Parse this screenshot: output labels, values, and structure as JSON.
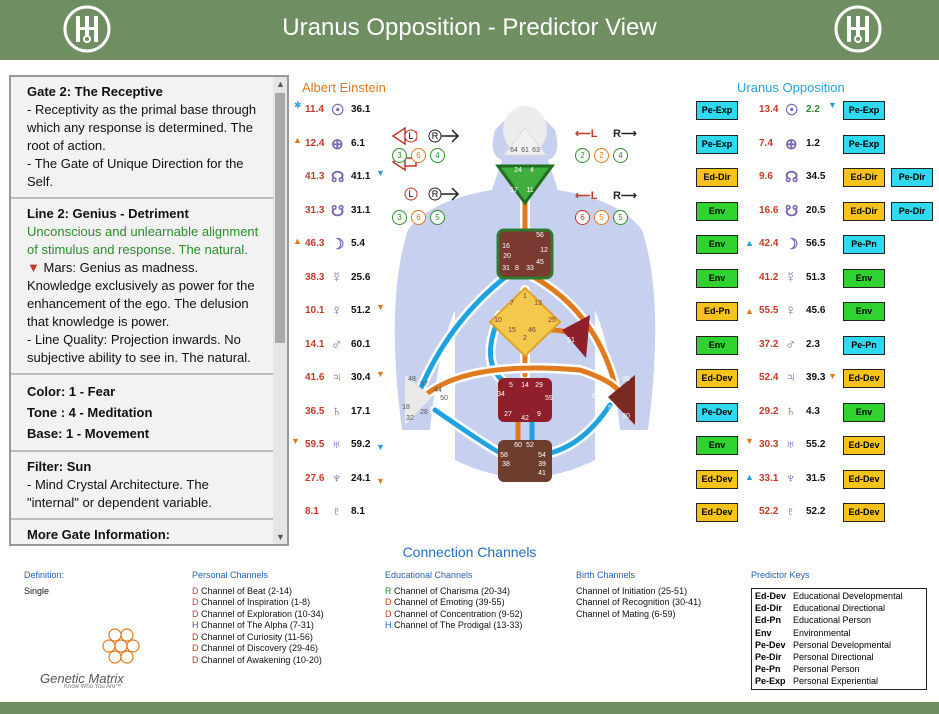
{
  "header": {
    "title": "Uranus Opposition - Predictor View"
  },
  "left_name": "Albert Einstein",
  "right_name": "Uranus Opposition",
  "info": {
    "gate_title": "Gate 2: The Receptive",
    "gate_text": "- Receptivity as the primal base through which any response is determined. The root of action.",
    "gate_text2": "- The Gate of Unique Direction for the Self.",
    "line_title": "Line 2: Genius - Detriment",
    "line_green": "Unconscious and unlearnable alignment of stimulus and response. The natural.",
    "line_mars": "Mars: Genius as madness. Knowledge exclusively as power for the enhancement of the ego. The delusion that knowledge is power.",
    "line_quality": "- Line Quality: Projection inwards. No subjective ability to see in. The natural.",
    "color": "Color: 1 - Fear",
    "tone": "Tone : 4 - Meditation",
    "base": "Base: 1 - Movement",
    "filter_title": "Filter: Sun",
    "filter_text": "- Mind Crystal Architecture. The \"internal\" or dependent variable.",
    "more": "More Gate Information:"
  },
  "left_rows": [
    {
      "v": "11.4",
      "g": "☉",
      "d": "36.1"
    },
    {
      "v": "12.4",
      "g": "⊕",
      "d": "6.1"
    },
    {
      "v": "41.3",
      "g": "☊",
      "d": "41.1"
    },
    {
      "v": "31.3",
      "g": "☋",
      "d": "31.1"
    },
    {
      "v": "46.3",
      "g": "☽",
      "d": "5.4"
    },
    {
      "v": "38.3",
      "g": "☿",
      "d": "25.6"
    },
    {
      "v": "10.1",
      "g": "♀",
      "d": "51.2"
    },
    {
      "v": "14.1",
      "g": "♂",
      "d": "60.1"
    },
    {
      "v": "41.6",
      "g": "♃",
      "d": "30.4"
    },
    {
      "v": "36.5",
      "g": "♄",
      "d": "17.1"
    },
    {
      "v": "59.5",
      "g": "♅",
      "d": "59.2"
    },
    {
      "v": "27.6",
      "g": "♆",
      "d": "24.1"
    },
    {
      "v": "8.1",
      "g": "♇",
      "d": "8.1"
    }
  ],
  "right_rows": [
    {
      "k1": "Pe-Exp",
      "v": "13.4",
      "g": "☉",
      "d": "2.2",
      "k2": "Pe-Exp",
      "k3": ""
    },
    {
      "k1": "Pe-Exp",
      "v": "7.4",
      "g": "⊕",
      "d": "1.2",
      "k2": "Pe-Exp",
      "k3": ""
    },
    {
      "k1": "Ed-Dir",
      "v": "9.6",
      "g": "☊",
      "d": "34.5",
      "k2": "Ed-Dir",
      "k3": "Pe-Dir"
    },
    {
      "k1": "Env",
      "v": "16.6",
      "g": "☋",
      "d": "20.5",
      "k2": "Ed-Dir",
      "k3": "Pe-Dir"
    },
    {
      "k1": "Env",
      "v": "42.4",
      "g": "☽",
      "d": "56.5",
      "k2": "Pe-Pn",
      "k3": ""
    },
    {
      "k1": "Env",
      "v": "41.2",
      "g": "☿",
      "d": "51.3",
      "k2": "Env",
      "k3": ""
    },
    {
      "k1": "Ed-Pn",
      "v": "55.5",
      "g": "♀",
      "d": "45.6",
      "k2": "Env",
      "k3": ""
    },
    {
      "k1": "Env",
      "v": "37.2",
      "g": "♂",
      "d": "2.3",
      "k2": "Pe-Pn",
      "k3": ""
    },
    {
      "k1": "Ed-Dev",
      "v": "52.4",
      "g": "♃",
      "d": "39.3",
      "k2": "Ed-Dev",
      "k3": ""
    },
    {
      "k1": "Pe-Dev",
      "v": "29.2",
      "g": "♄",
      "d": "4.3",
      "k2": "Env",
      "k3": ""
    },
    {
      "k1": "Env",
      "v": "30.3",
      "g": "♅",
      "d": "55.2",
      "k2": "Ed-Dev",
      "k3": ""
    },
    {
      "k1": "Ed-Dev",
      "v": "33.1",
      "g": "♆",
      "d": "31.5",
      "k2": "Ed-Dev",
      "k3": ""
    },
    {
      "k1": "Ed-Dev",
      "v": "52.2",
      "g": "♇",
      "d": "52.2",
      "k2": "Ed-Dev",
      "k3": ""
    }
  ],
  "arrows": {
    "left_top": [
      "3",
      "6",
      "4"
    ],
    "left_bot": [
      "3",
      "6",
      "5"
    ],
    "right_top": [
      "2",
      "2",
      "4"
    ],
    "right_bot": [
      "6",
      "5",
      "5"
    ]
  },
  "body_gates": {
    "head": [
      "64",
      "61",
      "63"
    ],
    "ajna": [
      "24",
      "4",
      "17",
      "11"
    ],
    "throat": [
      "56",
      "16",
      "20",
      "12",
      "45",
      "31",
      "8",
      "33"
    ],
    "g": [
      "1",
      "7",
      "13",
      "10",
      "15",
      "25",
      "46",
      "2"
    ],
    "ego": [
      "51"
    ],
    "sacral": [
      "5",
      "14",
      "29",
      "34",
      "27",
      "42",
      "9",
      "59"
    ],
    "spleen": [
      "48",
      "57",
      "44",
      "50",
      "18",
      "28",
      "32"
    ],
    "solar": [
      "36",
      "37",
      "6",
      "55",
      "30"
    ],
    "root": [
      "60",
      "52",
      "58",
      "38",
      "54",
      "39",
      "41"
    ]
  },
  "channels_title": "Connection Channels",
  "definition": {
    "label": "Definition:",
    "value": "Single"
  },
  "personal": {
    "label": "Personal Channels",
    "items": [
      {
        "p": "D",
        "t": "Channel of Beat (2-14)"
      },
      {
        "p": "D",
        "t": "Channel of Inspiration (1-8)"
      },
      {
        "p": "D",
        "t": "Channel of Exploration (10-34)"
      },
      {
        "p": "H",
        "t": "Channel of The Alpha (7-31)"
      },
      {
        "p": "D",
        "t": "Channel of Curiosity (11-56)"
      },
      {
        "p": "D",
        "t": "Channel of Discovery (29-46)"
      },
      {
        "p": "D",
        "t": "Channel of Awakening (10-20)"
      }
    ]
  },
  "educational": {
    "label": "Educational Channels",
    "items": [
      {
        "p": "R",
        "t": "Channel of Charisma (20-34)"
      },
      {
        "p": "D",
        "t": "Channel of Emoting (39-55)"
      },
      {
        "p": "D",
        "t": "Channel of Concentration (9-52)"
      },
      {
        "p": "H",
        "t": "Channel of The Prodigal (13-33)"
      }
    ]
  },
  "birth": {
    "label": "Birth Channels",
    "items": [
      "Channel of Initiation (25-51)",
      "Channel of Recognition (30-41)",
      "Channel of Mating (6-59)"
    ]
  },
  "keys": {
    "label": "Predictor Keys",
    "items": [
      {
        "k": "Ed-Dev",
        "t": "Educational Developmental"
      },
      {
        "k": "Ed-Dir",
        "t": "Educational Directional"
      },
      {
        "k": "Ed-Pn",
        "t": "Educational Person"
      },
      {
        "k": "Env",
        "t": "Environmental"
      },
      {
        "k": "Pe-Dev",
        "t": "Personal Developmental"
      },
      {
        "k": "Pe-Dir",
        "t": "Personal Directional"
      },
      {
        "k": "Pe-Pn",
        "t": "Personal Person"
      },
      {
        "k": "Pe-Exp",
        "t": "Personal Experiential"
      }
    ]
  },
  "brand": {
    "name": "Genetic Matrix",
    "tagline": "Know Who You Are™"
  },
  "colors": {
    "header": "#6f8f62",
    "red": "#c0392b",
    "green": "#2e8b2e",
    "blue": "#2a6db7",
    "pe": "#2fd9f0",
    "ed": "#f7c21a",
    "env": "#2fd22f"
  }
}
